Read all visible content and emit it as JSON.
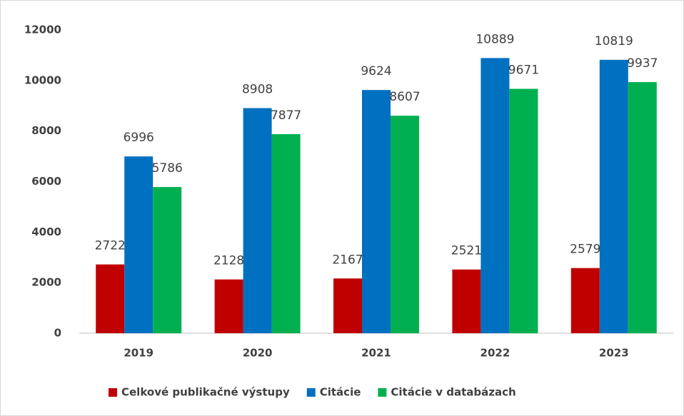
{
  "chart_data": {
    "type": "bar",
    "categories": [
      "2019",
      "2020",
      "2021",
      "2022",
      "2023"
    ],
    "series": [
      {
        "name": "Celkové publikačné výstupy",
        "color": "#c00000",
        "values": [
          2722,
          2128,
          2167,
          2521,
          2579
        ]
      },
      {
        "name": "Citácie",
        "color": "#0070c0",
        "values": [
          6996,
          8908,
          9624,
          10889,
          10819
        ]
      },
      {
        "name": "Citácie v databázach",
        "color": "#00b050",
        "values": [
          5786,
          7877,
          8607,
          9671,
          9937
        ]
      }
    ],
    "ylim": [
      0,
      12000
    ],
    "yticks": [
      0,
      2000,
      4000,
      6000,
      8000,
      10000,
      12000
    ],
    "grid": false,
    "legend": "bottom"
  }
}
